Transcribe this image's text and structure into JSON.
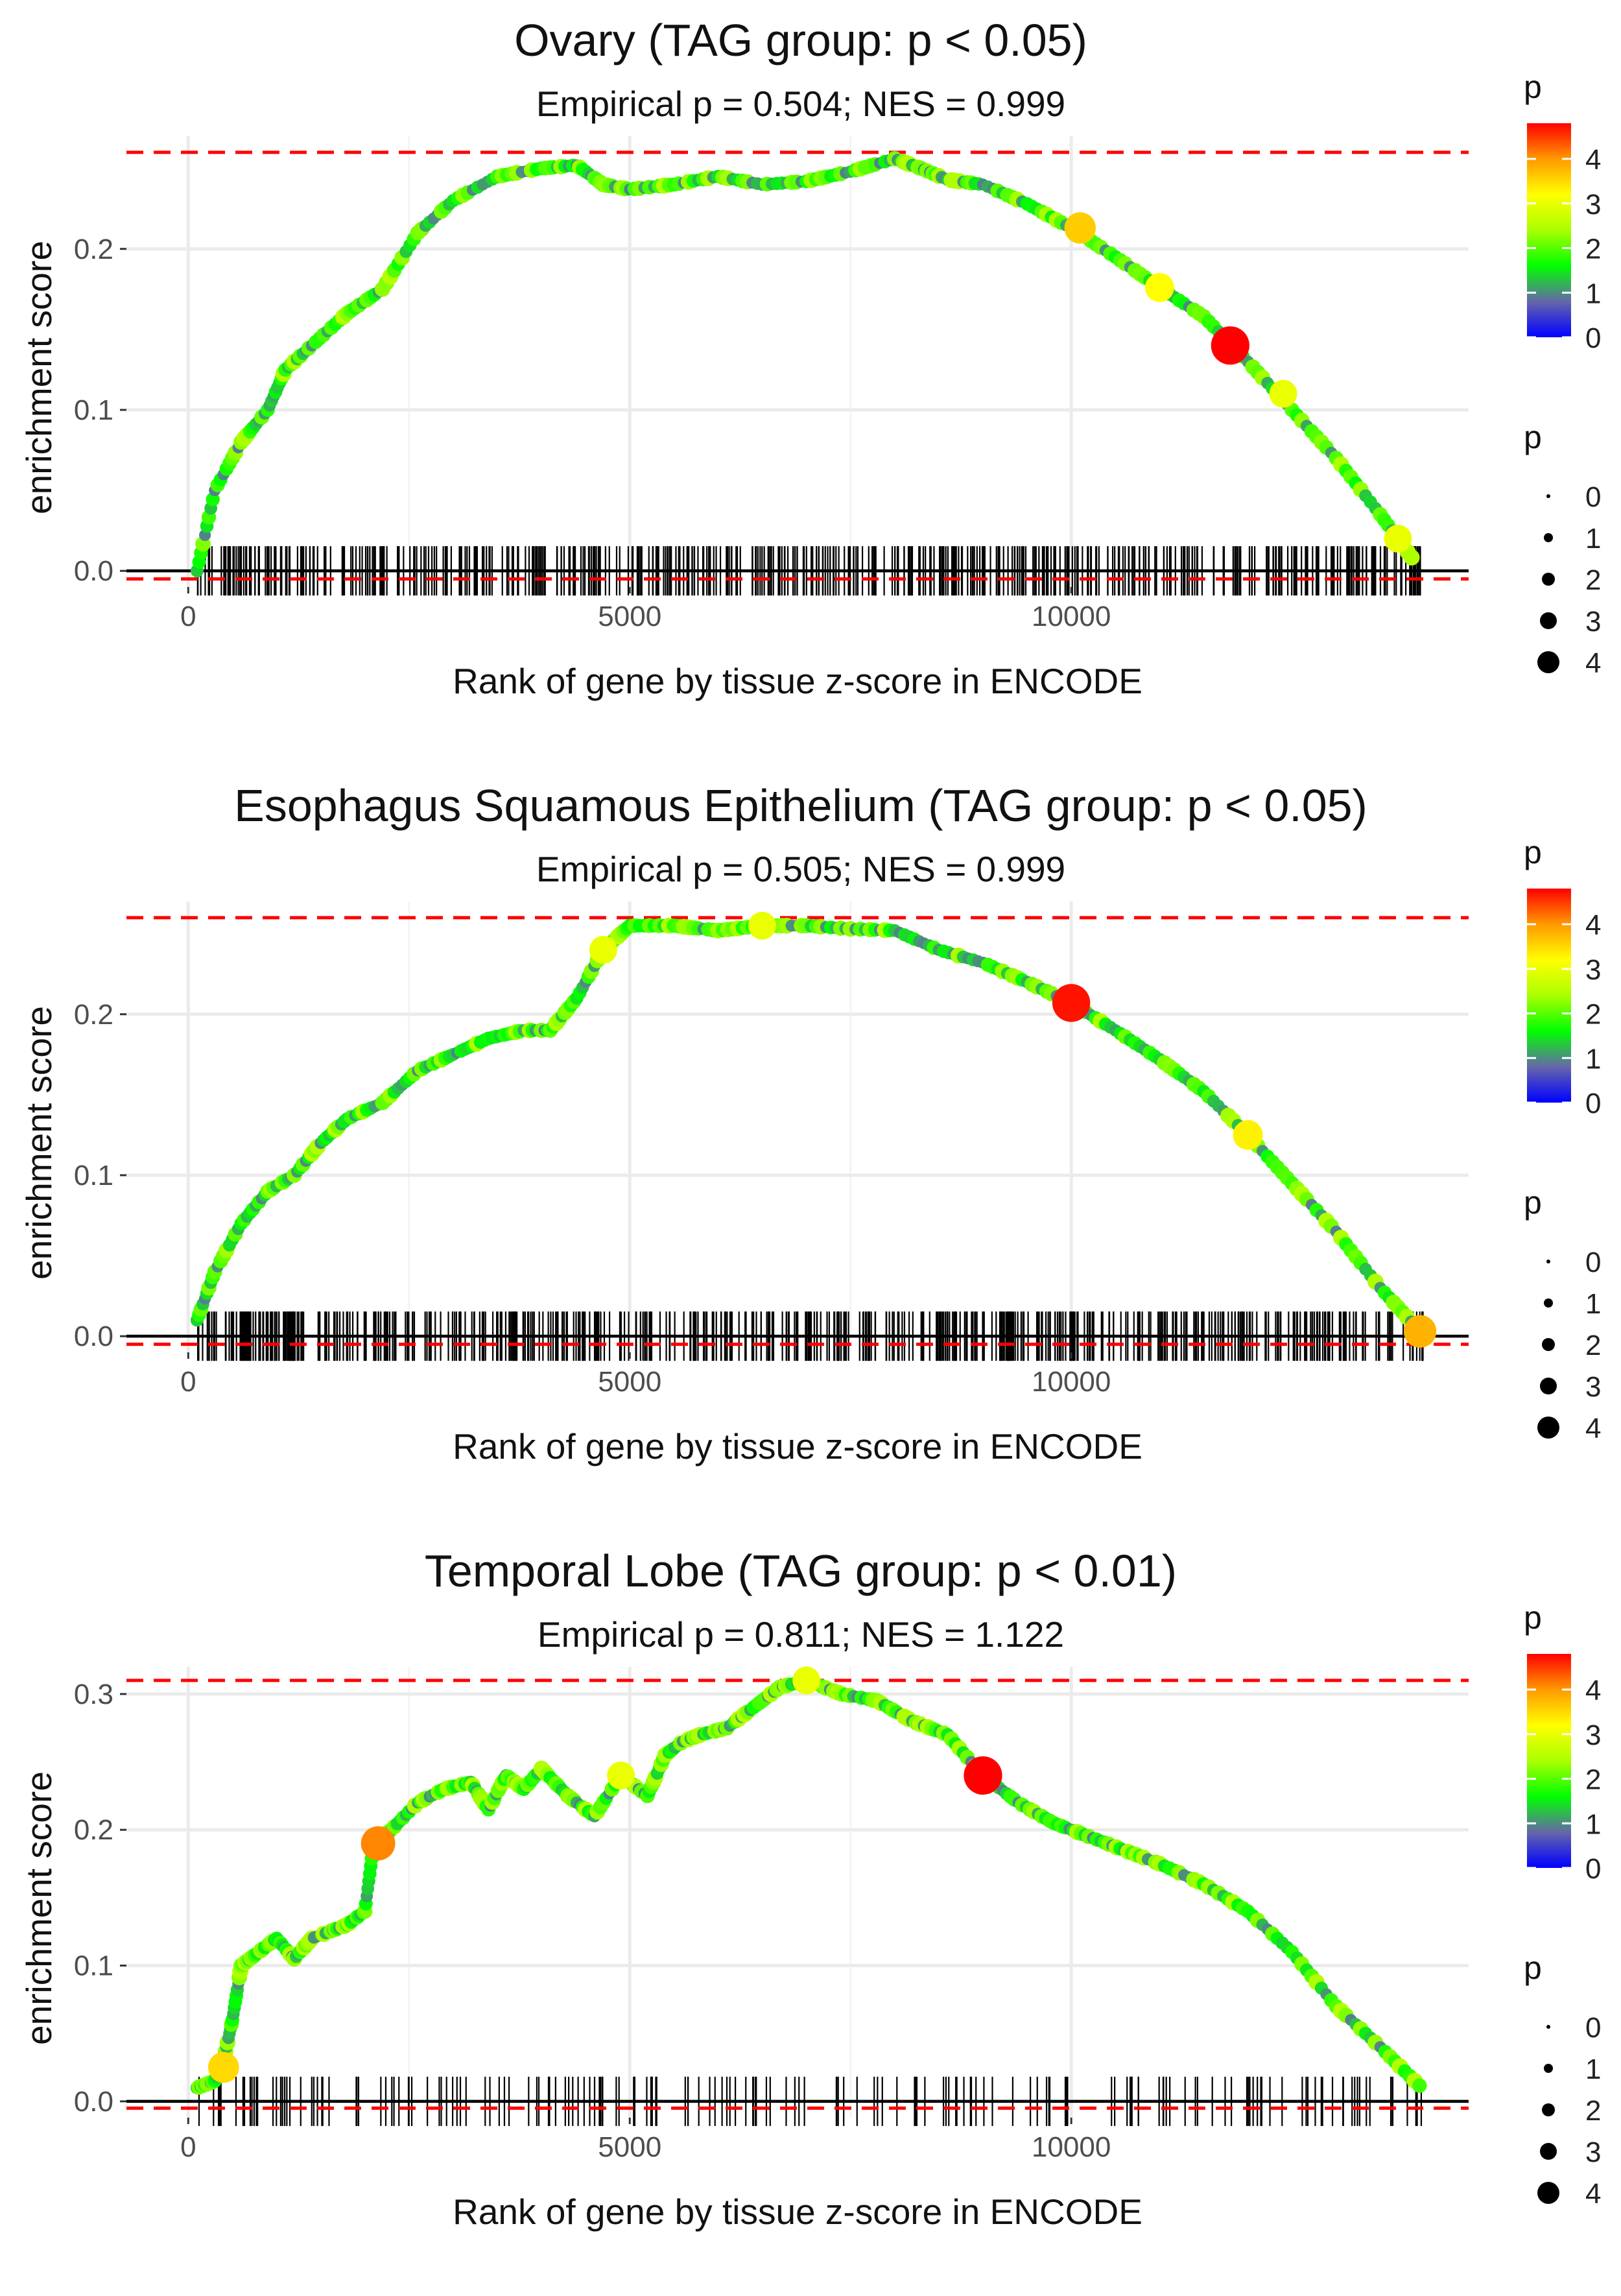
{
  "colors": {
    "ref_line": "#ff0000",
    "curve": "#aaaaaa",
    "axis": "#000000",
    "grid": "#ebebeb",
    "gradient": [
      "#0000ff",
      "#6666aa",
      "#00ff00",
      "#aaff00",
      "#ffff00",
      "#ff9900",
      "#ff0000"
    ]
  },
  "chart_data": [
    {
      "type": "line",
      "title": "Ovary (TAG group: p < 0.05)",
      "subtitle": "Empirical p = 0.504; NES = 0.999",
      "xlabel": "Rank of gene by tissue z-score in ENCODE",
      "ylabel": "enrichment score",
      "xlim": [
        -700,
        14500
      ],
      "ylim": [
        -0.01,
        0.27
      ],
      "xticks": [
        0,
        5000,
        10000
      ],
      "xtick_labels": [
        "0",
        "5000",
        "10000"
      ],
      "yticks": [
        0.0,
        0.1,
        0.2
      ],
      "ytick_labels": [
        "0.0",
        "0.1",
        "0.2"
      ],
      "ref_lines": [
        0.26,
        -0.005
      ],
      "rug": {
        "start": 100,
        "end": 14000,
        "count": 520,
        "seed": 11
      },
      "curve": [
        [
          100,
          0
        ],
        [
          300,
          0.05
        ],
        [
          600,
          0.08
        ],
        [
          900,
          0.1
        ],
        [
          1100,
          0.125
        ],
        [
          1400,
          0.14
        ],
        [
          1800,
          0.16
        ],
        [
          2200,
          0.175
        ],
        [
          2600,
          0.21
        ],
        [
          3000,
          0.23
        ],
        [
          3500,
          0.245
        ],
        [
          4000,
          0.25
        ],
        [
          4400,
          0.252
        ],
        [
          4700,
          0.24
        ],
        [
          5000,
          0.237
        ],
        [
          5500,
          0.24
        ],
        [
          6000,
          0.245
        ],
        [
          6500,
          0.24
        ],
        [
          7000,
          0.242
        ],
        [
          7500,
          0.248
        ],
        [
          8000,
          0.256
        ],
        [
          8300,
          0.25
        ],
        [
          8600,
          0.243
        ],
        [
          9000,
          0.24
        ],
        [
          9500,
          0.228
        ],
        [
          10000,
          0.213
        ],
        [
          10500,
          0.195
        ],
        [
          11000,
          0.176
        ],
        [
          11500,
          0.158
        ],
        [
          12000,
          0.13
        ],
        [
          12500,
          0.1
        ],
        [
          13000,
          0.07
        ],
        [
          13500,
          0.035
        ],
        [
          13900,
          0.005
        ]
      ],
      "highlights": [
        {
          "x": 10100,
          "y": 0.213,
          "p": 3.6
        },
        {
          "x": 11000,
          "y": 0.176,
          "p": 3.2
        },
        {
          "x": 11800,
          "y": 0.14,
          "p": 4.8
        },
        {
          "x": 12400,
          "y": 0.11,
          "p": 3.0
        },
        {
          "x": 13700,
          "y": 0.02,
          "p": 3.0
        }
      ],
      "legend": {
        "colorbar_title": "p",
        "colorbar_ticks": [
          0,
          1,
          2,
          3,
          4
        ],
        "colorbar_max": 4.8,
        "size_title": "p",
        "size_ticks": [
          "0",
          "1",
          "2",
          "3",
          "4"
        ]
      }
    },
    {
      "type": "line",
      "title": "Esophagus Squamous Epithelium (TAG group: p < 0.05)",
      "subtitle": "Empirical p = 0.505; NES = 0.999",
      "xlabel": "Rank of gene by tissue z-score in ENCODE",
      "ylabel": "enrichment score",
      "xlim": [
        -700,
        14500
      ],
      "ylim": [
        -0.01,
        0.27
      ],
      "xticks": [
        0,
        5000,
        10000
      ],
      "xtick_labels": [
        "0",
        "5000",
        "10000"
      ],
      "yticks": [
        0.0,
        0.1,
        0.2
      ],
      "ytick_labels": [
        "0.0",
        "0.1",
        "0.2"
      ],
      "ref_lines": [
        0.26,
        -0.005
      ],
      "rug": {
        "start": 100,
        "end": 14000,
        "count": 560,
        "seed": 23
      },
      "curve": [
        [
          100,
          0.01
        ],
        [
          300,
          0.04
        ],
        [
          600,
          0.07
        ],
        [
          900,
          0.09
        ],
        [
          1200,
          0.1
        ],
        [
          1500,
          0.12
        ],
        [
          1800,
          0.135
        ],
        [
          2200,
          0.145
        ],
        [
          2600,
          0.165
        ],
        [
          3000,
          0.175
        ],
        [
          3400,
          0.185
        ],
        [
          3800,
          0.19
        ],
        [
          4100,
          0.19
        ],
        [
          4400,
          0.21
        ],
        [
          4700,
          0.24
        ],
        [
          5000,
          0.255
        ],
        [
          5500,
          0.255
        ],
        [
          6000,
          0.252
        ],
        [
          6500,
          0.255
        ],
        [
          7000,
          0.255
        ],
        [
          7500,
          0.253
        ],
        [
          8000,
          0.252
        ],
        [
          8500,
          0.24
        ],
        [
          9000,
          0.232
        ],
        [
          9500,
          0.22
        ],
        [
          10000,
          0.207
        ],
        [
          10500,
          0.19
        ],
        [
          11000,
          0.172
        ],
        [
          11500,
          0.152
        ],
        [
          12000,
          0.125
        ],
        [
          12500,
          0.095
        ],
        [
          13000,
          0.065
        ],
        [
          13500,
          0.03
        ],
        [
          13950,
          0.003
        ]
      ],
      "highlights": [
        {
          "x": 10000,
          "y": 0.207,
          "p": 4.7
        },
        {
          "x": 12000,
          "y": 0.125,
          "p": 3.3
        },
        {
          "x": 6500,
          "y": 0.255,
          "p": 3.0
        },
        {
          "x": 4700,
          "y": 0.24,
          "p": 3.0
        },
        {
          "x": 13950,
          "y": 0.003,
          "p": 3.8
        }
      ],
      "legend": {
        "colorbar_title": "p",
        "colorbar_ticks": [
          0,
          1,
          2,
          3,
          4
        ],
        "colorbar_max": 4.8,
        "size_title": "p",
        "size_ticks": [
          "0",
          "1",
          "2",
          "3",
          "4"
        ]
      }
    },
    {
      "type": "line",
      "title": "Temporal Lobe (TAG group: p < 0.01)",
      "subtitle": "Empirical p = 0.811; NES = 1.122",
      "xlabel": "Rank of gene by tissue z-score in ENCODE",
      "ylabel": "enrichment score",
      "xlim": [
        -700,
        14500
      ],
      "ylim": [
        -0.012,
        0.32
      ],
      "xticks": [
        0,
        5000,
        10000
      ],
      "xtick_labels": [
        "0",
        "5000",
        "10000"
      ],
      "yticks": [
        0.0,
        0.1,
        0.2,
        0.3
      ],
      "ytick_labels": [
        "0.0",
        "0.1",
        "0.2",
        "0.3"
      ],
      "ref_lines": [
        0.31,
        -0.005
      ],
      "rug": {
        "start": 100,
        "end": 14000,
        "count": 190,
        "seed": 37
      },
      "curve": [
        [
          100,
          0.01
        ],
        [
          300,
          0.015
        ],
        [
          400,
          0.03
        ],
        [
          500,
          0.06
        ],
        [
          600,
          0.1
        ],
        [
          800,
          0.11
        ],
        [
          1000,
          0.12
        ],
        [
          1200,
          0.105
        ],
        [
          1400,
          0.12
        ],
        [
          1600,
          0.125
        ],
        [
          1800,
          0.13
        ],
        [
          2000,
          0.14
        ],
        [
          2100,
          0.19
        ],
        [
          2300,
          0.2
        ],
        [
          2600,
          0.22
        ],
        [
          2900,
          0.23
        ],
        [
          3200,
          0.235
        ],
        [
          3400,
          0.215
        ],
        [
          3600,
          0.24
        ],
        [
          3800,
          0.23
        ],
        [
          4000,
          0.245
        ],
        [
          4300,
          0.225
        ],
        [
          4600,
          0.21
        ],
        [
          4900,
          0.24
        ],
        [
          5200,
          0.225
        ],
        [
          5400,
          0.255
        ],
        [
          5600,
          0.265
        ],
        [
          5800,
          0.27
        ],
        [
          6100,
          0.275
        ],
        [
          6400,
          0.29
        ],
        [
          6700,
          0.305
        ],
        [
          7000,
          0.31
        ],
        [
          7400,
          0.3
        ],
        [
          7800,
          0.295
        ],
        [
          8200,
          0.28
        ],
        [
          8600,
          0.27
        ],
        [
          9000,
          0.24
        ],
        [
          9400,
          0.22
        ],
        [
          9800,
          0.205
        ],
        [
          10200,
          0.195
        ],
        [
          10600,
          0.185
        ],
        [
          11000,
          0.175
        ],
        [
          11500,
          0.16
        ],
        [
          12000,
          0.14
        ],
        [
          12500,
          0.11
        ],
        [
          13000,
          0.07
        ],
        [
          13500,
          0.04
        ],
        [
          14000,
          0.008
        ]
      ],
      "highlights": [
        {
          "x": 400,
          "y": 0.025,
          "p": 3.5
        },
        {
          "x": 2150,
          "y": 0.19,
          "p": 4.1
        },
        {
          "x": 9000,
          "y": 0.24,
          "p": 4.8
        },
        {
          "x": 7000,
          "y": 0.31,
          "p": 3.0
        },
        {
          "x": 4900,
          "y": 0.24,
          "p": 3.0
        }
      ],
      "legend": {
        "colorbar_title": "p",
        "colorbar_ticks": [
          0,
          1,
          2,
          3,
          4
        ],
        "colorbar_max": 4.8,
        "size_title": "p",
        "size_ticks": [
          "0",
          "1",
          "2",
          "3",
          "4"
        ]
      }
    }
  ]
}
